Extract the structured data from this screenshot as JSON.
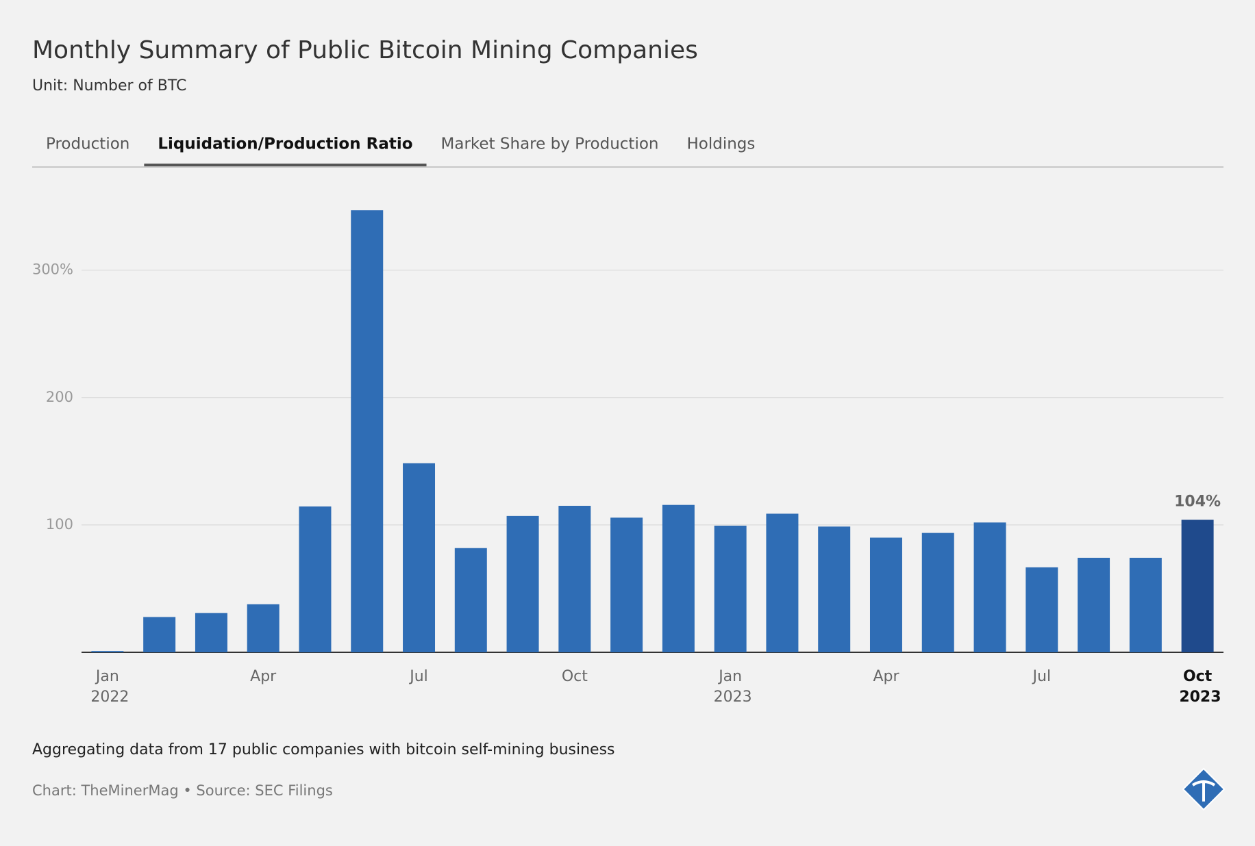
{
  "chart_data": {
    "type": "bar",
    "title": "Monthly Summary of Public Bitcoin Mining Companies",
    "subtitle": "Unit: Number of BTC",
    "tabs": [
      "Production",
      "Liquidation/Production Ratio",
      "Market Share by Production",
      "Holdings"
    ],
    "active_tab": 1,
    "categories": [
      "Jan 2022",
      null,
      null,
      "Apr",
      null,
      null,
      "Jul",
      null,
      null,
      "Oct",
      null,
      null,
      "Jan 2023",
      null,
      null,
      "Apr",
      null,
      null,
      "Jul",
      null,
      null,
      "Oct 2023"
    ],
    "values": [
      1,
      27.7,
      30.8,
      37.7,
      114.5,
      347,
      148.4,
      81.8,
      107,
      115,
      105.7,
      115.7,
      99.4,
      108.8,
      98.7,
      90,
      93.7,
      101.9,
      66.7,
      74.2,
      74.2,
      104
    ],
    "value_labels": [
      null,
      null,
      null,
      null,
      null,
      null,
      null,
      null,
      null,
      null,
      null,
      null,
      null,
      null,
      null,
      null,
      null,
      null,
      null,
      null,
      null,
      "104%"
    ],
    "color": "#2f6db5",
    "highlight_color": "#1f4a8c",
    "ylim": [
      0,
      360
    ],
    "yticks": [
      100,
      200,
      {
        "value": 300,
        "label": "300%"
      }
    ],
    "grid": true,
    "note": "Aggregating data from 17 public companies with bitcoin self-mining business",
    "credit": "Chart: TheMinerMag • Source: SEC Filings"
  }
}
